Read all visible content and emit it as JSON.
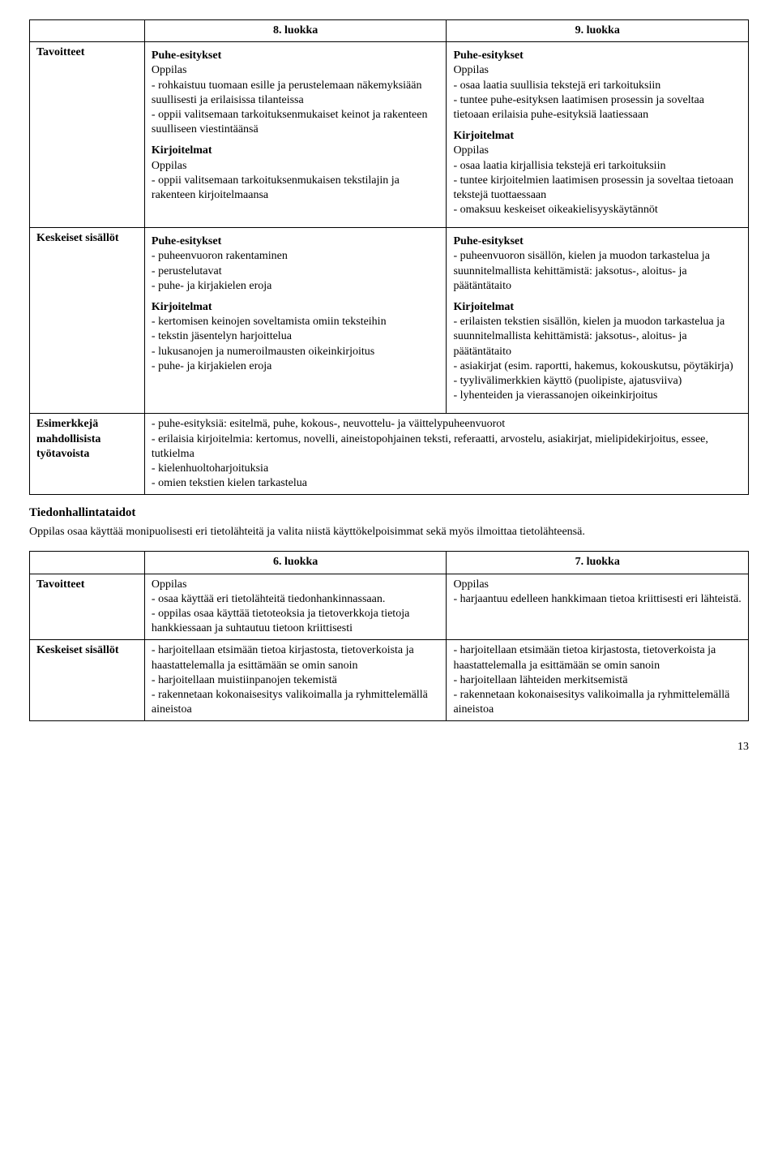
{
  "table1": {
    "header": {
      "col1": "",
      "col2": "8. luokka",
      "col3": "9. luokka"
    },
    "row1_label": "Tavoitteet",
    "row1_col2": {
      "sec1_title": "Puhe-esitykset",
      "sec1_oppilas": "Oppilas",
      "sec1_lines": [
        "- rohkaistuu tuomaan esille ja perustelemaan näkemyksiään suullisesti ja erilaisissa tilanteissa",
        "- oppii valitsemaan tarkoituksenmukaiset keinot ja rakenteen suulliseen viestintäänsä"
      ],
      "sec2_title": "Kirjoitelmat",
      "sec2_oppilas": "Oppilas",
      "sec2_lines": [
        "- oppii valitsemaan tarkoituksenmukaisen tekstilajin ja rakenteen kirjoitelmaansa"
      ]
    },
    "row1_col3": {
      "sec1_title": "Puhe-esitykset",
      "sec1_oppilas": "Oppilas",
      "sec1_lines": [
        "- osaa laatia suullisia tekstejä eri tarkoituksiin",
        "- tuntee puhe-esityksen laatimisen prosessin ja soveltaa tietoaan erilaisia puhe-esityksiä laatiessaan"
      ],
      "sec2_title": "Kirjoitelmat",
      "sec2_oppilas": "Oppilas",
      "sec2_lines": [
        "- osaa laatia kirjallisia tekstejä eri tarkoituksiin",
        "- tuntee kirjoitelmien laatimisen prosessin ja soveltaa tietoaan tekstejä tuottaessaan",
        "- omaksuu keskeiset oikeakielisyyskäytännöt"
      ]
    },
    "row2_label": "Keskeiset sisällöt",
    "row2_col2": {
      "sec1_title": "Puhe-esitykset",
      "sec1_lines": [
        "- puheenvuoron rakentaminen",
        "- perustelutavat",
        "- puhe- ja kirjakielen eroja"
      ],
      "sec2_title": "Kirjoitelmat",
      "sec2_lines": [
        "- kertomisen keinojen soveltamista omiin teksteihin",
        "- tekstin jäsentelyn harjoittelua",
        "- lukusanojen ja numeroilmausten oikeinkirjoitus",
        "- puhe- ja kirjakielen eroja"
      ]
    },
    "row2_col3": {
      "sec1_title": "Puhe-esitykset",
      "sec1_lines": [
        "- puheenvuoron sisällön, kielen ja muodon tarkastelua ja suunnitelmallista kehittämistä: jaksotus-, aloitus- ja päätäntätaito"
      ],
      "sec2_title": "Kirjoitelmat",
      "sec2_lines": [
        "- erilaisten tekstien sisällön, kielen ja muodon tarkastelua ja suunnitelmallista kehittämistä: jaksotus-, aloitus- ja päätäntätaito",
        "- asiakirjat (esim. raportti, hakemus, kokouskutsu, pöytäkirja)",
        "- tyylivälimerkkien käyttö (puolipiste, ajatusviiva)",
        "- lyhenteiden ja vierassanojen oikeinkirjoitus"
      ]
    },
    "row3_label": "Esimerkkejä mahdollisista työtavoista",
    "row3_merged_lines": [
      "- puhe-esityksiä: esitelmä, puhe,  kokous-, neuvottelu- ja väittelypuheenvuorot",
      "- erilaisia kirjoitelmia: kertomus, novelli, aineistopohjainen teksti, referaatti, arvostelu, asiakirjat, mielipidekirjoitus, essee, tutkielma",
      "- kielenhuoltoharjoituksia",
      "- omien tekstien kielen tarkastelua"
    ]
  },
  "heading2": "Tiedonhallintataidot",
  "para": "Oppilas osaa käyttää monipuolisesti eri tietolähteitä ja valita niistä käyttökelpoisimmat sekä myös ilmoittaa tietolähteensä.",
  "table2": {
    "header": {
      "col1": "",
      "col2": "6. luokka",
      "col3": "7. luokka"
    },
    "row1_label": "Tavoitteet",
    "row1_col2_oppilas": "Oppilas",
    "row1_col2_lines": [
      "- osaa käyttää eri tietolähteitä tiedonhankinnassaan.",
      "- oppilas osaa käyttää tietoteoksia ja tietoverkkoja tietoja hankkiessaan ja suhtautuu tietoon kriittisesti"
    ],
    "row1_col3_oppilas": "Oppilas",
    "row1_col3_lines": [
      "- harjaantuu edelleen hankkimaan tietoa kriittisesti eri lähteistä."
    ],
    "row2_label": "Keskeiset sisällöt",
    "row2_col2_lines": [
      "- harjoitellaan etsimään tietoa kirjastosta, tietoverkoista ja haastattelemalla ja esittämään se omin sanoin",
      "- harjoitellaan muistiinpanojen tekemistä",
      "- rakennetaan  kokonaisesitys valikoimalla ja ryhmittelemällä aineistoa"
    ],
    "row2_col3_lines": [
      "- harjoitellaan etsimään tietoa kirjastosta, tietoverkoista ja haastattelemalla ja esittämään se omin sanoin",
      "- harjoitellaan lähteiden merkitsemistä",
      "- rakennetaan  kokonaisesitys valikoimalla ja ryhmittelemällä aineistoa"
    ]
  },
  "page_number": "13"
}
